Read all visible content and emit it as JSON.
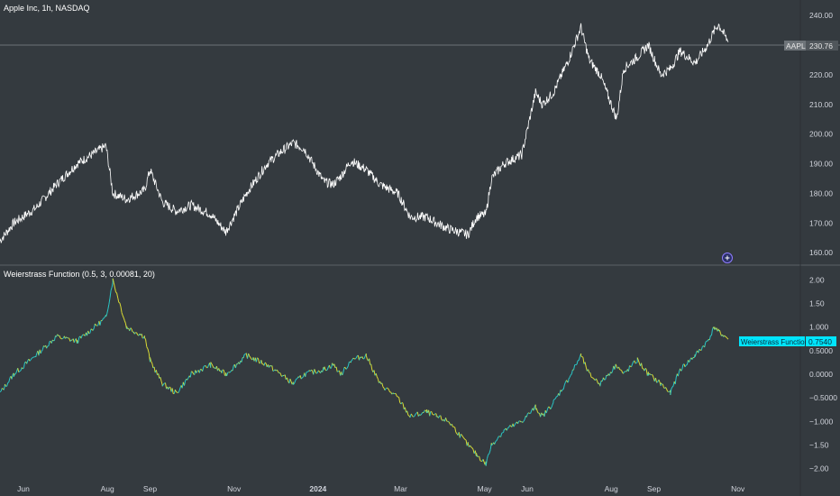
{
  "header": {
    "symbol_title": "Apple Inc, 1h, NASDAQ"
  },
  "indicator": {
    "title": "Weierstrass Function (0.5, 3, 0.00081, 20)"
  },
  "labels": {
    "price_ticker": "AAPL",
    "price_value": "230.76",
    "indicator_name": "Weierstrass Function",
    "indicator_value": "0.7540"
  },
  "colors": {
    "background": "#343a3f",
    "price_line": "#ffffff",
    "indicator_up": "#29c7c7",
    "indicator_down": "#d9d934",
    "indicator_label_bg": "#00e5ff",
    "axis_text": "#d1d4dc",
    "marker": "#7b2ff7"
  },
  "icons": {
    "event_marker": "plus-circle-icon"
  },
  "chart_data": [
    {
      "type": "line",
      "title": "Apple Inc, 1h, NASDAQ",
      "x_axis_ticks": [
        "Jun",
        "Aug",
        "Sep",
        "Nov",
        "2024",
        "Mar",
        "May",
        "Jun",
        "Aug",
        "Sep",
        "Nov"
      ],
      "y_axis_ticks": [
        "240.00",
        "230.00",
        "220.00",
        "210.00",
        "200.00",
        "190.00",
        "180.00",
        "170.00",
        "160.00"
      ],
      "ylim": [
        157,
        244
      ],
      "grid": false,
      "current_value": 230.76,
      "series": [
        {
          "name": "AAPL",
          "x": [
            "2023-05-15",
            "2023-05-25",
            "2023-06-10",
            "2023-06-25",
            "2023-07-10",
            "2023-07-31",
            "2023-08-05",
            "2023-08-15",
            "2023-08-28",
            "2023-09-01",
            "2023-09-10",
            "2023-09-20",
            "2023-10-01",
            "2023-10-15",
            "2023-10-26",
            "2023-11-10",
            "2023-11-25",
            "2023-12-05",
            "2023-12-14",
            "2023-12-22",
            "2024-01-05",
            "2024-01-12",
            "2024-01-18",
            "2024-01-25",
            "2024-02-05",
            "2024-02-15",
            "2024-02-28",
            "2024-03-08",
            "2024-03-20",
            "2024-03-27",
            "2024-04-05",
            "2024-04-19",
            "2024-04-25",
            "2024-05-02",
            "2024-05-06",
            "2024-05-15",
            "2024-05-28",
            "2024-06-07",
            "2024-06-12",
            "2024-06-20",
            "2024-07-01",
            "2024-07-10",
            "2024-07-16",
            "2024-07-24",
            "2024-08-05",
            "2024-08-10",
            "2024-08-20",
            "2024-08-28",
            "2024-09-06",
            "2024-09-13",
            "2024-09-20",
            "2024-10-01",
            "2024-10-10",
            "2024-10-15",
            "2024-10-18",
            "2024-10-25"
          ],
          "values": [
            164,
            170,
            175,
            183,
            190,
            196,
            180,
            178,
            181,
            188,
            177,
            174,
            176,
            173,
            167,
            180,
            190,
            194,
            197,
            195,
            184,
            183,
            186,
            191,
            188,
            183,
            180,
            172,
            172,
            170,
            168,
            166,
            172,
            173,
            185,
            190,
            193,
            214,
            210,
            214,
            225,
            236,
            225,
            220,
            205,
            222,
            226,
            230,
            220,
            222,
            228,
            224,
            230,
            235,
            237,
            231
          ]
        }
      ]
    },
    {
      "type": "line",
      "title": "Weierstrass Function (0.5, 3, 0.00081, 20)",
      "x_axis_ticks": [
        "Jun",
        "Aug",
        "Sep",
        "Nov",
        "2024",
        "Mar",
        "May",
        "Jun",
        "Aug",
        "Sep",
        "Nov"
      ],
      "y_axis_ticks": [
        "2.00",
        "1.50",
        "1.000",
        "0.5000",
        "0.0000",
        "−0.5000",
        "−1.000",
        "−1.50",
        "−2.00"
      ],
      "ylim": [
        -2.2,
        2.2
      ],
      "grid": false,
      "current_value": 0.754,
      "series": [
        {
          "name": "Weierstrass Function",
          "x": [
            "2023-05-15",
            "2023-05-25",
            "2023-06-10",
            "2023-06-25",
            "2023-07-10",
            "2023-07-31",
            "2023-08-05",
            "2023-08-15",
            "2023-08-28",
            "2023-09-01",
            "2023-09-10",
            "2023-09-20",
            "2023-10-01",
            "2023-10-15",
            "2023-10-26",
            "2023-11-10",
            "2023-11-25",
            "2023-12-05",
            "2023-12-14",
            "2023-12-22",
            "2024-01-05",
            "2024-01-12",
            "2024-01-18",
            "2024-01-25",
            "2024-02-05",
            "2024-02-15",
            "2024-02-28",
            "2024-03-08",
            "2024-03-20",
            "2024-03-27",
            "2024-04-05",
            "2024-04-19",
            "2024-04-25",
            "2024-05-02",
            "2024-05-06",
            "2024-05-15",
            "2024-05-28",
            "2024-06-07",
            "2024-06-12",
            "2024-06-20",
            "2024-07-01",
            "2024-07-10",
            "2024-07-16",
            "2024-07-24",
            "2024-08-05",
            "2024-08-10",
            "2024-08-20",
            "2024-08-28",
            "2024-09-06",
            "2024-09-13",
            "2024-09-20",
            "2024-10-01",
            "2024-10-10",
            "2024-10-15",
            "2024-10-18",
            "2024-10-25"
          ],
          "values": [
            -0.4,
            0.0,
            0.4,
            0.8,
            0.7,
            1.2,
            2.0,
            1.0,
            0.8,
            0.3,
            -0.2,
            -0.4,
            0.0,
            0.2,
            0.0,
            0.4,
            0.2,
            0.0,
            -0.2,
            0.0,
            0.1,
            0.2,
            0.0,
            0.3,
            0.4,
            -0.2,
            -0.5,
            -0.9,
            -0.8,
            -0.9,
            -1.0,
            -1.5,
            -1.7,
            -1.9,
            -1.5,
            -1.2,
            -1.0,
            -0.7,
            -0.9,
            -0.6,
            -0.1,
            0.4,
            0.0,
            -0.2,
            0.2,
            0.0,
            0.3,
            0.0,
            -0.2,
            -0.4,
            0.1,
            0.4,
            0.7,
            1.0,
            0.9,
            0.754
          ]
        }
      ]
    }
  ]
}
